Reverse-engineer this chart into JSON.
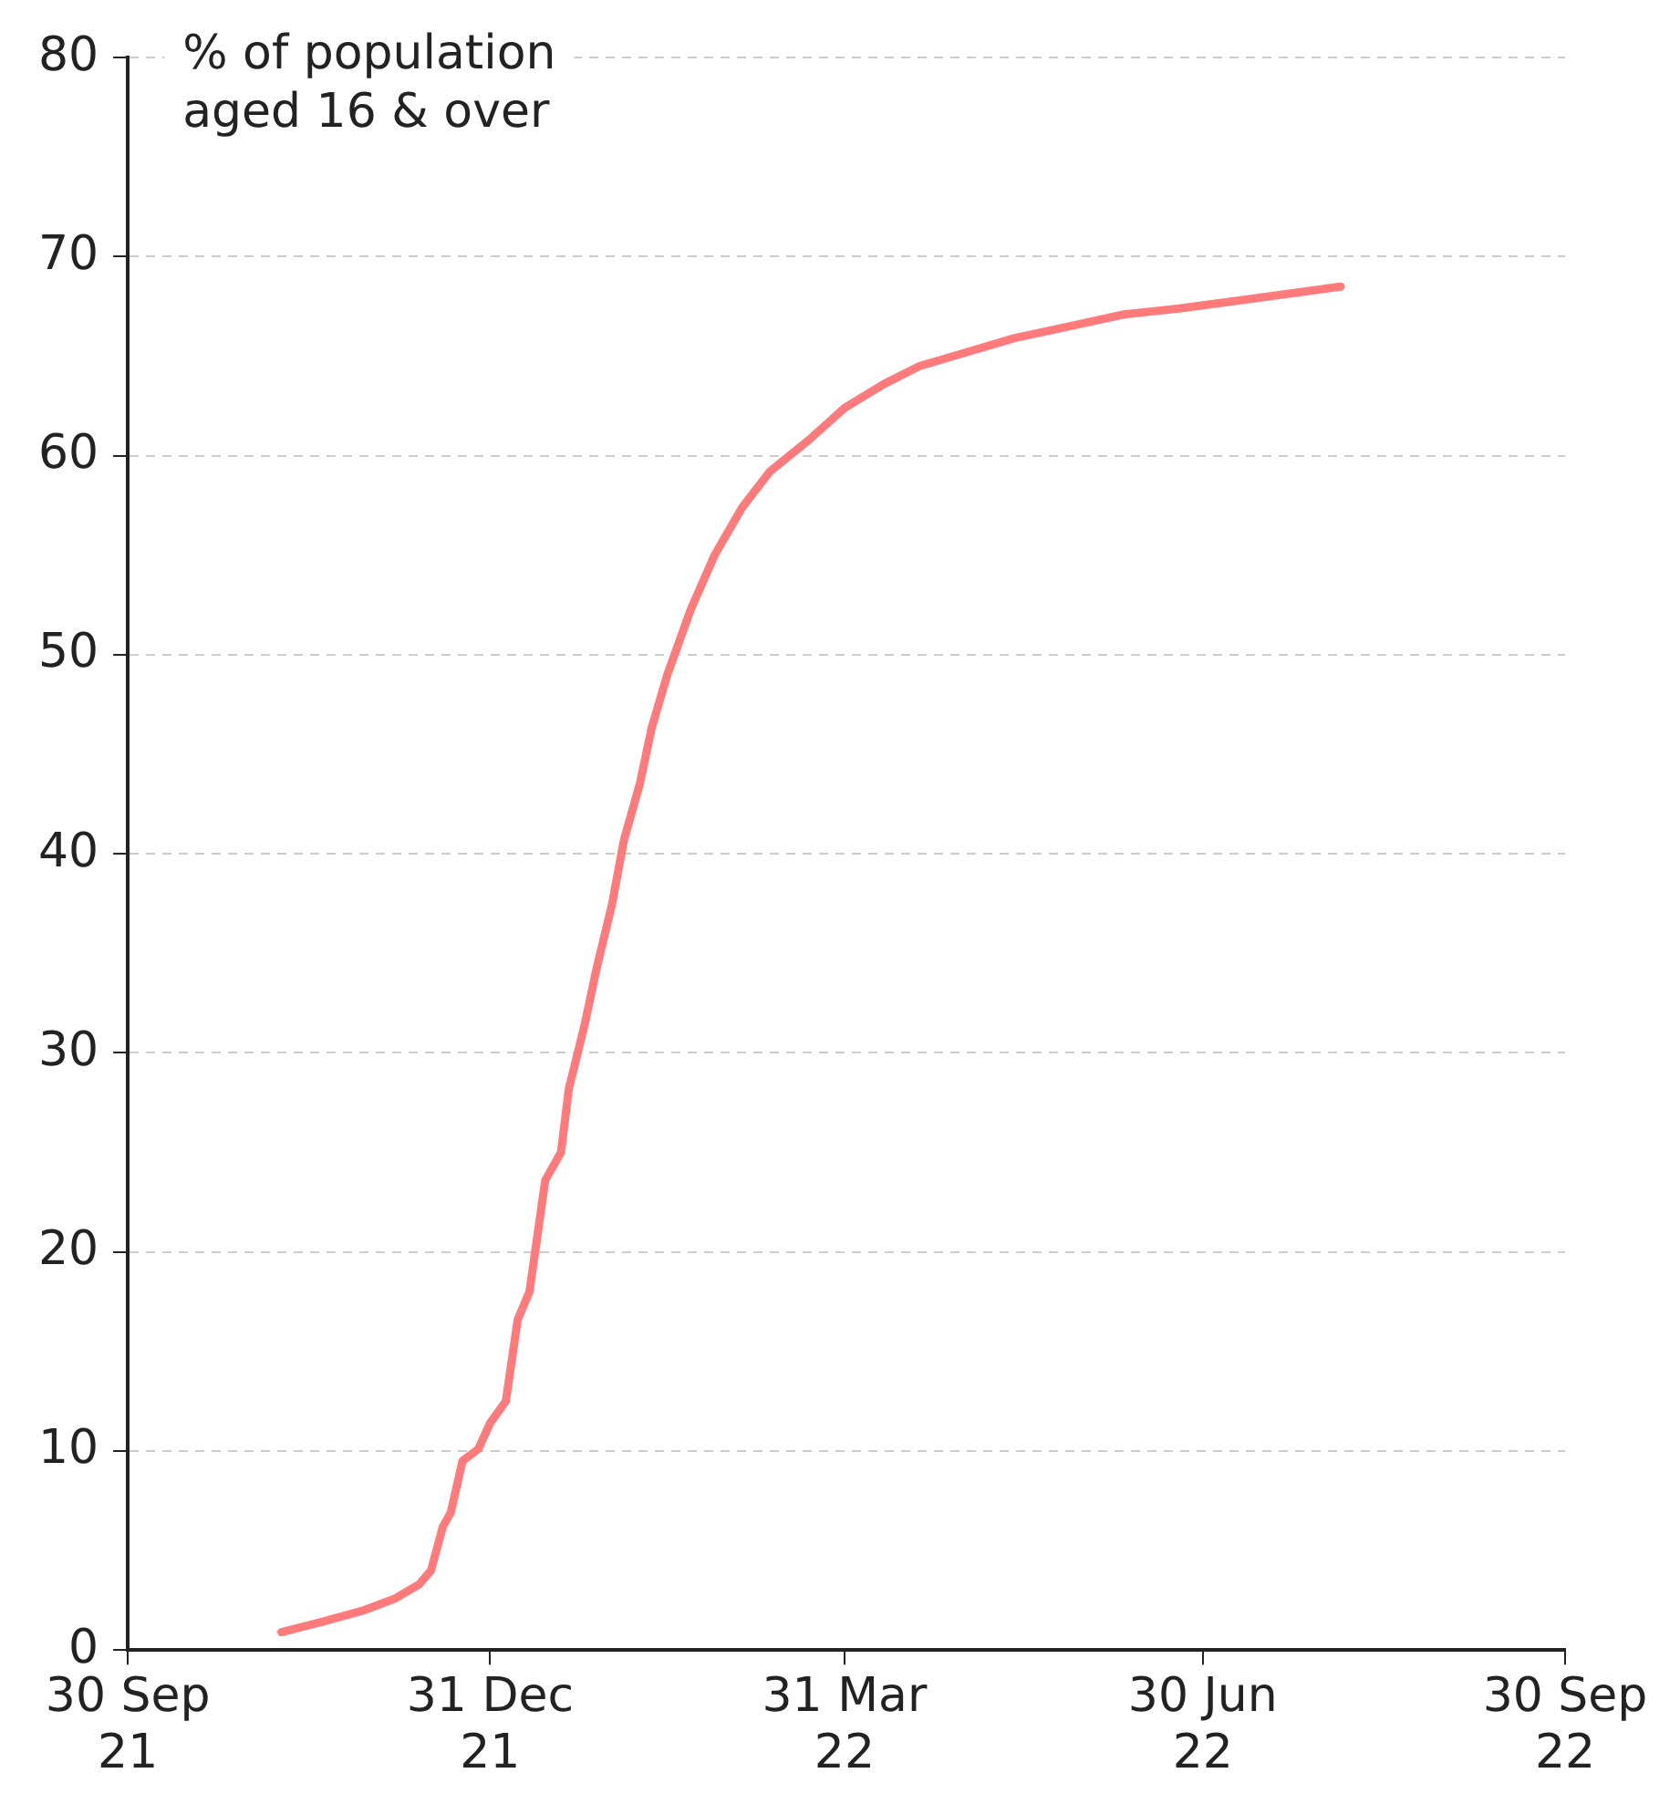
{
  "chart_data": {
    "type": "line",
    "ylabel": "% of population aged 16 & over",
    "x": [
      "2021-11-08",
      "2021-11-18",
      "2021-11-29",
      "2021-12-07",
      "2021-12-13",
      "2021-12-16",
      "2021-12-19",
      "2021-12-21",
      "2021-12-24",
      "2021-12-28",
      "2021-12-31",
      "2022-01-04",
      "2022-01-07",
      "2022-01-10",
      "2022-01-14",
      "2022-01-18",
      "2022-01-20",
      "2022-01-24",
      "2022-01-27",
      "2022-01-31",
      "2022-02-03",
      "2022-02-07",
      "2022-02-10",
      "2022-02-14",
      "2022-02-20",
      "2022-02-26",
      "2022-03-05",
      "2022-03-12",
      "2022-03-22",
      "2022-03-31",
      "2022-04-10",
      "2022-04-19",
      "2022-05-01",
      "2022-05-13",
      "2022-05-27",
      "2022-06-10",
      "2022-06-24",
      "2022-07-13",
      "2022-08-04"
    ],
    "series": [
      {
        "color": "#ff7b7b",
        "values": [
          0.9,
          1.4,
          2.0,
          2.6,
          3.3,
          4.0,
          6.2,
          6.9,
          9.5,
          10.1,
          11.4,
          12.5,
          16.6,
          18,
          23.6,
          25,
          28.2,
          31.4,
          34.2,
          37.5,
          40.7,
          43.5,
          46.3,
          49,
          52.3,
          55,
          57.4,
          59.2,
          60.8,
          62.4,
          63.6,
          64.5,
          65.2,
          65.9,
          66.5,
          67.1,
          67.4,
          67.9,
          68.5
        ]
      }
    ],
    "xlim": [
      "2021-09-30",
      "2022-09-30"
    ],
    "xticks": [
      {
        "value": "2021-09-30",
        "label": "30 Sep\n21"
      },
      {
        "value": "2021-12-31",
        "label": "31 Dec\n21"
      },
      {
        "value": "2022-03-31",
        "label": "31 Mar\n22"
      },
      {
        "value": "2022-06-30",
        "label": "30 Jun\n22"
      },
      {
        "value": "2022-09-30",
        "label": "30 Sep\n22"
      }
    ],
    "ylim": [
      0,
      80
    ],
    "yticks": [
      0,
      10,
      20,
      30,
      40,
      50,
      60,
      70,
      80
    ],
    "grid": "y",
    "legend": false,
    "marker": "none",
    "line_style": "solid"
  }
}
